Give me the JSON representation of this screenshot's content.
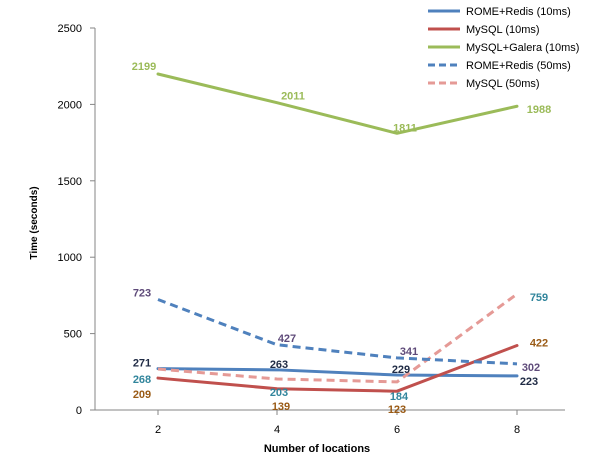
{
  "chart_data": {
    "type": "line",
    "xlabel": "Number of locations",
    "ylabel": "Time (seconds)",
    "ylim": [
      0,
      2500
    ],
    "yticks": [
      0,
      500,
      1000,
      1500,
      2000,
      2500
    ],
    "x": [
      2,
      4,
      6,
      8
    ],
    "legend_position": "top-right",
    "grid": false,
    "series": [
      {
        "name": "ROME+Redis (10ms)",
        "values": [
          271,
          263,
          229,
          223
        ],
        "color": "#4f81bd",
        "dashed": false,
        "label_color": "#1f2a44"
      },
      {
        "name": "MySQL (10ms)",
        "values": [
          209,
          139,
          123,
          422
        ],
        "color": "#c0504d",
        "dashed": false,
        "label_color": "#9a5b16"
      },
      {
        "name": "MySQL+Galera (10ms)",
        "values": [
          2199,
          2011,
          1811,
          1988
        ],
        "color": "#9bbb59",
        "dashed": false,
        "label_color": "#9bbb59"
      },
      {
        "name": "ROME+Redis (50ms)",
        "values": [
          723,
          427,
          341,
          302
        ],
        "color": "#4f81bd",
        "dashed": true,
        "label_color": "#5f4b7a"
      },
      {
        "name": "MySQL (50ms)",
        "values": [
          268,
          203,
          184,
          759
        ],
        "color": "#e59a96",
        "dashed": true,
        "label_color": "#31859c"
      }
    ]
  }
}
